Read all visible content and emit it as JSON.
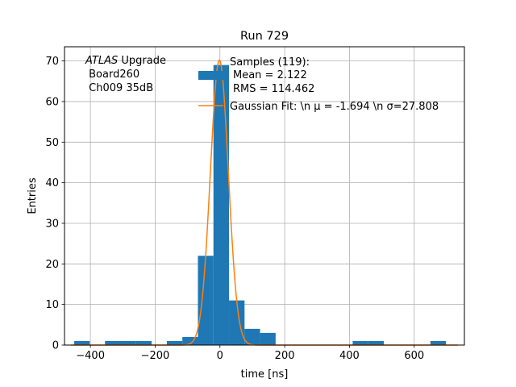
{
  "chart_data": {
    "type": "histogram",
    "title": "Run 729",
    "xlabel": "time [ns]",
    "ylabel": "Entries",
    "xlim": [
      -480,
      755
    ],
    "ylim": [
      0,
      73.5
    ],
    "xticks": [
      -400,
      -200,
      0,
      200,
      400,
      600
    ],
    "xtick_labels": [
      "−400",
      "−200",
      "0",
      "200",
      "400",
      "600"
    ],
    "yticks": [
      0,
      10,
      20,
      30,
      40,
      50,
      60,
      70
    ],
    "ytick_labels": [
      "0",
      "10",
      "20",
      "30",
      "40",
      "50",
      "60",
      "70"
    ],
    "grid": true,
    "bar_color": "#1f77b4",
    "fit_color": "#ff7f0e",
    "bins": [
      {
        "x0": -450,
        "x1": -402,
        "count": 1
      },
      {
        "x0": -355,
        "x1": -307,
        "count": 1
      },
      {
        "x0": -307,
        "x1": -259,
        "count": 1
      },
      {
        "x0": -259,
        "x1": -211,
        "count": 1
      },
      {
        "x0": -164,
        "x1": -116,
        "count": 1
      },
      {
        "x0": -116,
        "x1": -68,
        "count": 2
      },
      {
        "x0": -68,
        "x1": -20,
        "count": 22
      },
      {
        "x0": -20,
        "x1": 28,
        "count": 69
      },
      {
        "x0": 28,
        "x1": 76,
        "count": 11
      },
      {
        "x0": 76,
        "x1": 124,
        "count": 4
      },
      {
        "x0": 124,
        "x1": 172,
        "count": 3
      },
      {
        "x0": 410,
        "x1": 458,
        "count": 1
      },
      {
        "x0": 458,
        "x1": 506,
        "count": 1
      },
      {
        "x0": 650,
        "x1": 698,
        "count": 1
      }
    ],
    "gaussian_fit": {
      "mu": -1.694,
      "sigma": 27.808,
      "amplitude": 70.2
    },
    "legend": {
      "placement": "upper-right",
      "histogram_lines": [
        "Samples (119):",
        "Mean = 2.122",
        "RMS = 114.462"
      ],
      "fit_label": "Gaussian Fit: \\n μ = -1.694 \\n σ=27.808"
    },
    "annotation": {
      "experiment": "ATLAS",
      "experiment_suffix": " Upgrade",
      "line2": " Board260",
      "line3": " Ch009 35dB"
    }
  }
}
